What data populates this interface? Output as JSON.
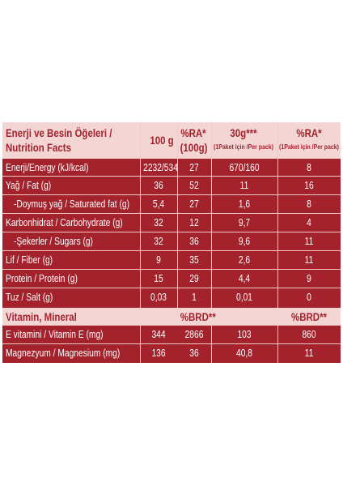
{
  "header": {
    "title_line1": "Enerji ve Besin Öğeleri /",
    "title_line2": "Nutrition Facts",
    "col_100g": "100 g",
    "col_ra_line1": "%RA*",
    "col_ra_line2": "(100g)",
    "col_30g": "30g***",
    "col_30g_sub": "(1Paket için /Per pack)",
    "col_ra2": "%RA*",
    "col_ra2_sub": "(1Paket için /Per pack)"
  },
  "rows": [
    {
      "label": "Enerji/Energy (kJ/kcal)",
      "v100": "2232/534",
      "ra100": "27",
      "v30": "670/160",
      "ra30": "8"
    },
    {
      "label": "Yağ / Fat (g)",
      "v100": "36",
      "ra100": "52",
      "v30": "11",
      "ra30": "16"
    },
    {
      "label": "-Doymuş yağ / Saturated fat (g)",
      "v100": "5,4",
      "ra100": "27",
      "v30": "1,6",
      "ra30": "8"
    },
    {
      "label": "Karbonhidrat / Carbohydrate (g)",
      "v100": "32",
      "ra100": "12",
      "v30": "9,7",
      "ra30": "4"
    },
    {
      "label": "-Şekerler / Sugars (g)",
      "v100": "32",
      "ra100": "36",
      "v30": "9,6",
      "ra30": "11"
    },
    {
      "label": "Lif / Fiber (g)",
      "v100": "9",
      "ra100": "35",
      "v30": "2,6",
      "ra30": "11"
    },
    {
      "label": "Protein / Protein (g)",
      "v100": "15",
      "ra100": "29",
      "v30": "4,4",
      "ra30": "9"
    },
    {
      "label": "Tuz / Salt (g)",
      "v100": "0,03",
      "ra100": "1",
      "v30": "0,01",
      "ra30": "0"
    }
  ],
  "vitamin_header": {
    "label": "Vitamin, Mineral",
    "brd1": "%BRD**",
    "brd2": "%BRD**"
  },
  "vitamin_rows": [
    {
      "label": "E vitamini / Vitamin E (mg)",
      "v100": "344",
      "ra100": "2866",
      "v30": "103",
      "ra30": "860"
    },
    {
      "label": "Magnezyum / Magnesium (mg)",
      "v100": "136",
      "ra100": "36",
      "v30": "40,8",
      "ra30": "11"
    }
  ],
  "colors": {
    "background": "#a3222c",
    "header_bg": "#f3d6d4",
    "text_light": "#ffffff",
    "divider": "#f3c9c6"
  }
}
